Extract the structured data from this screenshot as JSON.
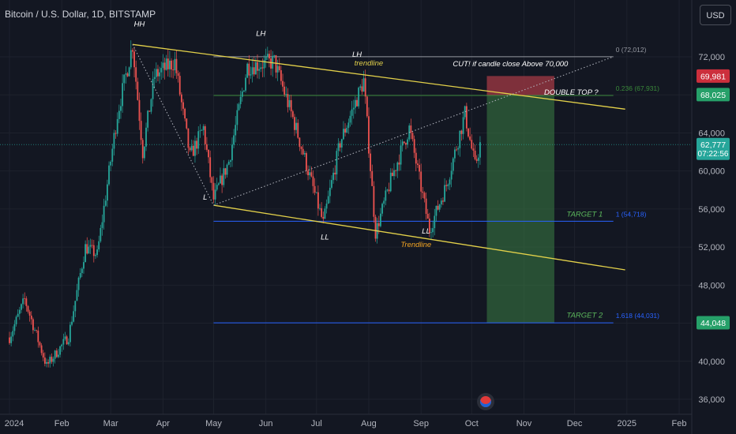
{
  "header": {
    "title": "Bitcoin / U.S. Dollar, 1D, BITSTAMP"
  },
  "currency_button": {
    "label": "USD"
  },
  "chart_data": {
    "type": "candlestick",
    "x_ticks": [
      "2024",
      "Feb",
      "Mar",
      "Apr",
      "May",
      "Jun",
      "Jul",
      "Aug",
      "Sep",
      "Oct",
      "Nov",
      "Dec",
      "2025",
      "Feb"
    ],
    "y_ticks": [
      36000,
      40000,
      44000,
      48000,
      52000,
      56000,
      60000,
      64000,
      68000,
      72000
    ],
    "y_tick_labels": [
      "36,000",
      "40,000",
      "44,000",
      "48,000",
      "52,000",
      "56,000",
      "60,000",
      "64,000",
      "68,000",
      "72,000"
    ],
    "ylim": [
      35000,
      76500
    ],
    "price_path": [
      {
        "x": "2024-01-01",
        "y": 42500
      },
      {
        "x": "2024-01-10",
        "y": 46500
      },
      {
        "x": "2024-01-23",
        "y": 39500
      },
      {
        "x": "2024-02-05",
        "y": 42600
      },
      {
        "x": "2024-02-15",
        "y": 52000
      },
      {
        "x": "2024-02-22",
        "y": 51200
      },
      {
        "x": "2024-03-05",
        "y": 66000
      },
      {
        "x": "2024-03-14",
        "y": 73300
      },
      {
        "x": "2024-03-20",
        "y": 62000
      },
      {
        "x": "2024-03-27",
        "y": 70000
      },
      {
        "x": "2024-04-08",
        "y": 71500
      },
      {
        "x": "2024-04-17",
        "y": 61500
      },
      {
        "x": "2024-04-25",
        "y": 64500
      },
      {
        "x": "2024-05-01",
        "y": 57000
      },
      {
        "x": "2024-05-10",
        "y": 61000
      },
      {
        "x": "2024-05-21",
        "y": 71000
      },
      {
        "x": "2024-06-06",
        "y": 71500
      },
      {
        "x": "2024-06-18",
        "y": 65000
      },
      {
        "x": "2024-07-05",
        "y": 54500
      },
      {
        "x": "2024-07-15",
        "y": 63000
      },
      {
        "x": "2024-07-29",
        "y": 69500
      },
      {
        "x": "2024-08-05",
        "y": 53500
      },
      {
        "x": "2024-08-14",
        "y": 59000
      },
      {
        "x": "2024-08-25",
        "y": 64500
      },
      {
        "x": "2024-09-06",
        "y": 53800
      },
      {
        "x": "2024-09-16",
        "y": 58500
      },
      {
        "x": "2024-09-27",
        "y": 66000
      },
      {
        "x": "2024-10-03",
        "y": 60500
      },
      {
        "x": "2024-10-06",
        "y": 62777
      }
    ],
    "annotations": {
      "trendline_top": {
        "x1": "2024-03-14",
        "y1": 73300,
        "x2": "2024-12-31",
        "y2": 66500,
        "color": "#e3d14a"
      },
      "trendline_bottom": {
        "x1": "2024-05-01",
        "y1": 56400,
        "x2": "2024-12-31",
        "y2": 49600,
        "color": "#e3d14a"
      },
      "dotted_lines": [
        {
          "x1": "2024-03-14",
          "y1": 73300,
          "x2": "2024-05-01",
          "y2": 56400
        },
        {
          "x1": "2024-05-01",
          "y1": 56400,
          "x2": "2024-12-24",
          "y2": 72012
        }
      ],
      "hlines": [
        {
          "y": 72012,
          "x1": "2024-05-01",
          "x2": "2024-12-24",
          "color": "#9598a1",
          "label": "0 (72,012)"
        },
        {
          "y": 67931,
          "x1": "2024-05-01",
          "x2": "2024-12-24",
          "color": "#3a8a3a",
          "label": "0.236 (67,931)"
        },
        {
          "y": 54718,
          "x1": "2024-05-01",
          "x2": "2024-12-24",
          "color": "#2962ff",
          "label": "1 (54,718)"
        },
        {
          "y": 44031,
          "x1": "2024-05-01",
          "x2": "2024-12-24",
          "color": "#2962ff",
          "label": "1.618 (44,031)"
        }
      ],
      "stop_zone": {
        "x1": "2024-10-10",
        "x2": "2024-11-19",
        "y_top": 69981,
        "y_bottom": 67931,
        "color": "#a33a44"
      },
      "target_zone": {
        "x1": "2024-10-10",
        "x2": "2024-11-19",
        "y_top": 67931,
        "y_bottom": 44031,
        "color": "#3a7d44"
      },
      "labels": [
        {
          "text": "HH",
          "x": "2024-03-18",
          "y": 75200,
          "color": "#ffffff"
        },
        {
          "text": "LH",
          "x": "2024-05-29",
          "y": 74200,
          "color": "#ffffff"
        },
        {
          "text": "LH",
          "x": "2024-07-25",
          "y": 72000,
          "color": "#ffffff"
        },
        {
          "text": "trendline",
          "x": "2024-08-01",
          "y": 71100,
          "color": "#e3d14a"
        },
        {
          "text": "L",
          "x": "2024-04-26",
          "y": 57000,
          "color": "#ffffff"
        },
        {
          "text": "LL",
          "x": "2024-07-06",
          "y": 52800,
          "color": "#ffffff"
        },
        {
          "text": "Trendline",
          "x": "2024-08-29",
          "y": 52000,
          "color": "#f5a623"
        },
        {
          "text": "LL",
          "x": "2024-09-04",
          "y": 53400,
          "color": "#ffffff"
        },
        {
          "text": "CUT! if candle close Above 70,000",
          "x": "2024-10-24",
          "y": 71000,
          "color": "#ffffff"
        },
        {
          "text": "DOUBLE TOP ?",
          "x": "2024-11-29",
          "y": 68000,
          "color": "#ffffff"
        },
        {
          "text": "TARGET 1",
          "x": "2024-12-07",
          "y": 55200,
          "color": "#5cb85c"
        },
        {
          "text": "TARGET 2",
          "x": "2024-12-07",
          "y": 44600,
          "color": "#5cb85c"
        }
      ]
    },
    "price_badges": [
      {
        "value": "69,981",
        "y": 69981,
        "color": "#cc2f3c"
      },
      {
        "value": "68,025",
        "y": 68025,
        "color": "#26a069"
      },
      {
        "value": "62,777",
        "sub": "07:22:56",
        "y": 62777,
        "color": "#26a69a"
      },
      {
        "value": "44,048",
        "y": 44048,
        "color": "#26a069"
      }
    ]
  }
}
